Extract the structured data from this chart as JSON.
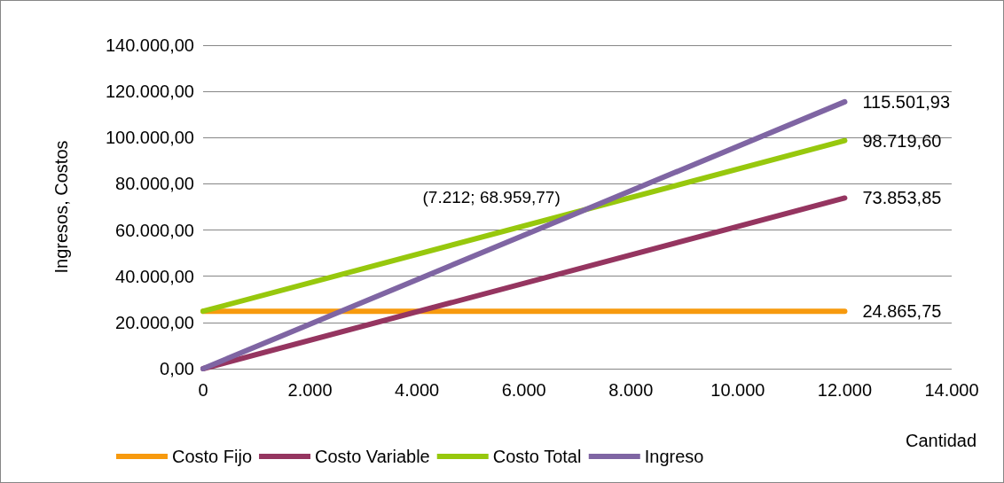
{
  "chart_data": {
    "type": "line",
    "xlabel": "Cantidad",
    "ylabel": "Ingresos, Costos",
    "xlim": [
      0,
      14000
    ],
    "xticks": [
      {
        "value": 0,
        "label": "0"
      },
      {
        "value": 2000,
        "label": "2.000"
      },
      {
        "value": 4000,
        "label": "4.000"
      },
      {
        "value": 6000,
        "label": "6.000"
      },
      {
        "value": 8000,
        "label": "8.000"
      },
      {
        "value": 10000,
        "label": "10.000"
      },
      {
        "value": 12000,
        "label": "12.000"
      },
      {
        "value": 14000,
        "label": "14.000"
      }
    ],
    "ylim": [
      0,
      140000
    ],
    "yticks": [
      {
        "value": 0,
        "label": "0,00"
      },
      {
        "value": 20000,
        "label": "20.000,00"
      },
      {
        "value": 40000,
        "label": "40.000,00"
      },
      {
        "value": 60000,
        "label": "60.000,00"
      },
      {
        "value": 80000,
        "label": "80.000,00"
      },
      {
        "value": 100000,
        "label": "100.000,00"
      },
      {
        "value": 120000,
        "label": "120.000,00"
      },
      {
        "value": 140000,
        "label": "140.000,00"
      }
    ],
    "grid": "y",
    "legend": "bottom",
    "marker": "none",
    "line_style": "solid",
    "x": [
      0,
      12000
    ],
    "series": [
      {
        "name": "Costo Fijo",
        "color": "#f79a0e",
        "values": [
          24865.75,
          24865.75
        ],
        "value_labels": [
          null,
          "24.865,75"
        ]
      },
      {
        "name": "Costo Variable",
        "color": "#953560",
        "values": [
          0,
          73853.85
        ],
        "value_labels": [
          null,
          "73.853,85"
        ]
      },
      {
        "name": "Costo Total",
        "color": "#97c80d",
        "values": [
          24865.75,
          98719.6
        ],
        "value_labels": [
          null,
          "98.719,60"
        ]
      },
      {
        "name": "Ingreso",
        "color": "#7f65a3",
        "values": [
          0,
          115501.93
        ],
        "value_labels": [
          null,
          "115.501,93"
        ]
      }
    ],
    "annotations": [
      {
        "text": "(7.212; 68.959,77)",
        "x": 7212,
        "y": 68959.77
      }
    ]
  }
}
